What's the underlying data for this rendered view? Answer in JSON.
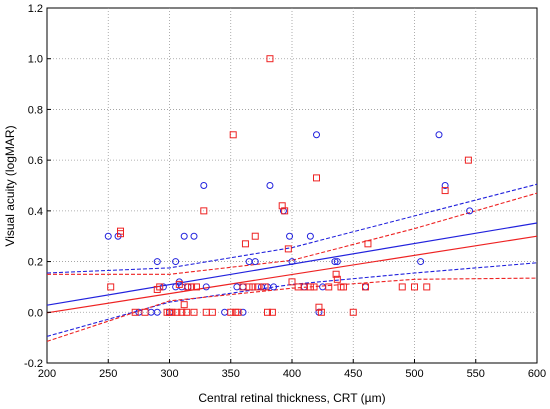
{
  "chart_data": {
    "type": "scatter",
    "title": "",
    "xlabel": "Central retinal thickness, CRT (µm)",
    "ylabel": "Visual acuity (logMAR)",
    "xlim": [
      200,
      600
    ],
    "ylim": [
      -0.2,
      1.2
    ],
    "x_ticks": [
      "200",
      "250",
      "300",
      "350",
      "400",
      "450",
      "500",
      "550",
      "600"
    ],
    "y_ticks": [
      "-0.2",
      "0.0",
      "0.2",
      "0.4",
      "0.6",
      "0.8",
      "1.0",
      "1.2"
    ],
    "grid": true,
    "legend": "none",
    "series": [
      {
        "marker": "circle",
        "color": "#2222dd",
        "points": [
          [
            250,
            0.3
          ],
          [
            258,
            0.3
          ],
          [
            275,
            0.0
          ],
          [
            285,
            0.0
          ],
          [
            290,
            0.2
          ],
          [
            290,
            0.0
          ],
          [
            295,
            0.1
          ],
          [
            300,
            0.0
          ],
          [
            305,
            0.2
          ],
          [
            305,
            0.1
          ],
          [
            308,
            0.12
          ],
          [
            310,
            0.1
          ],
          [
            312,
            0.3
          ],
          [
            315,
            0.1
          ],
          [
            320,
            0.3
          ],
          [
            328,
            0.5
          ],
          [
            330,
            0.1
          ],
          [
            345,
            0.0
          ],
          [
            355,
            0.1
          ],
          [
            360,
            0.1
          ],
          [
            360,
            0.0
          ],
          [
            365,
            0.2
          ],
          [
            370,
            0.2
          ],
          [
            375,
            0.1
          ],
          [
            380,
            0.1
          ],
          [
            382,
            0.5
          ],
          [
            385,
            0.1
          ],
          [
            393,
            0.4
          ],
          [
            398,
            0.3
          ],
          [
            400,
            0.2
          ],
          [
            410,
            0.1
          ],
          [
            415,
            0.3
          ],
          [
            420,
            0.7
          ],
          [
            422,
            0.0
          ],
          [
            425,
            0.1
          ],
          [
            435,
            0.2
          ],
          [
            437,
            0.2
          ],
          [
            460,
            0.1
          ],
          [
            505,
            0.2
          ],
          [
            520,
            0.7
          ],
          [
            525,
            0.5
          ],
          [
            545,
            0.4
          ]
        ],
        "fit": [
          [
            200,
            0.028
          ],
          [
            600,
            0.352
          ]
        ],
        "ci_upper": [
          [
            200,
            0.155
          ],
          [
            300,
            0.175
          ],
          [
            400,
            0.255
          ],
          [
            500,
            0.38
          ],
          [
            600,
            0.505
          ]
        ],
        "ci_lower": [
          [
            200,
            -0.095
          ],
          [
            300,
            0.04
          ],
          [
            400,
            0.11
          ],
          [
            500,
            0.155
          ],
          [
            600,
            0.195
          ]
        ]
      },
      {
        "marker": "square",
        "color": "#ee2222",
        "points": [
          [
            252,
            0.1
          ],
          [
            260,
            0.32
          ],
          [
            260,
            0.31
          ],
          [
            272,
            0.0
          ],
          [
            280,
            0.0
          ],
          [
            290,
            0.09
          ],
          [
            292,
            0.1
          ],
          [
            298,
            0.0
          ],
          [
            300,
            0.0
          ],
          [
            302,
            0.0
          ],
          [
            306,
            0.0
          ],
          [
            308,
            0.11
          ],
          [
            310,
            0.0
          ],
          [
            312,
            0.03
          ],
          [
            314,
            0.0
          ],
          [
            315,
            0.1
          ],
          [
            318,
            0.1
          ],
          [
            320,
            0.0
          ],
          [
            322,
            0.1
          ],
          [
            328,
            0.4
          ],
          [
            330,
            0.0
          ],
          [
            335,
            0.0
          ],
          [
            350,
            0.0
          ],
          [
            352,
            0.7
          ],
          [
            354,
            0.0
          ],
          [
            356,
            0.0
          ],
          [
            360,
            0.1
          ],
          [
            362,
            0.27
          ],
          [
            365,
            0.1
          ],
          [
            368,
            0.1
          ],
          [
            370,
            0.3
          ],
          [
            372,
            0.1
          ],
          [
            378,
            0.1
          ],
          [
            380,
            0.0
          ],
          [
            382,
            1.0
          ],
          [
            384,
            0.0
          ],
          [
            392,
            0.42
          ],
          [
            394,
            0.4
          ],
          [
            397,
            0.25
          ],
          [
            400,
            0.12
          ],
          [
            405,
            0.1
          ],
          [
            410,
            0.1
          ],
          [
            415,
            0.1
          ],
          [
            418,
            0.1
          ],
          [
            420,
            0.53
          ],
          [
            422,
            0.02
          ],
          [
            424,
            0.0
          ],
          [
            430,
            0.1
          ],
          [
            436,
            0.15
          ],
          [
            437,
            0.13
          ],
          [
            440,
            0.1
          ],
          [
            442,
            0.1
          ],
          [
            450,
            0.0
          ],
          [
            460,
            0.1
          ],
          [
            462,
            0.27
          ],
          [
            490,
            0.1
          ],
          [
            500,
            0.1
          ],
          [
            510,
            0.1
          ],
          [
            525,
            0.48
          ],
          [
            544,
            0.6
          ]
        ],
        "fit": [
          [
            200,
            -0.002
          ],
          [
            600,
            0.3
          ]
        ],
        "ci_upper": [
          [
            200,
            0.15
          ],
          [
            300,
            0.15
          ],
          [
            400,
            0.205
          ],
          [
            500,
            0.33
          ],
          [
            600,
            0.47
          ]
        ],
        "ci_lower": [
          [
            200,
            -0.115
          ],
          [
            300,
            0.045
          ],
          [
            400,
            0.095
          ],
          [
            500,
            0.13
          ],
          [
            600,
            0.135
          ]
        ]
      }
    ]
  }
}
